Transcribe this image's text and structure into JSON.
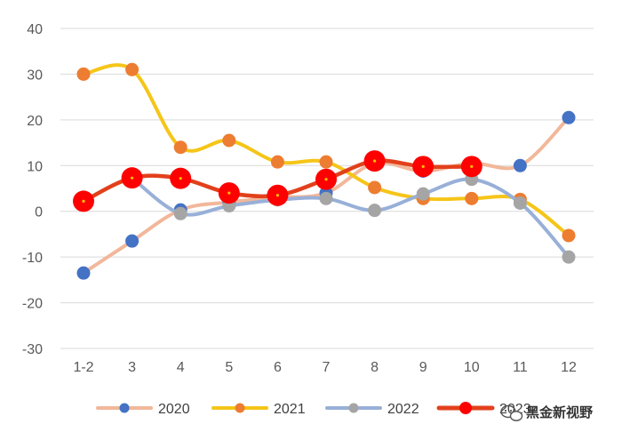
{
  "chart_data": {
    "type": "line",
    "title": "",
    "xlabel": "",
    "ylabel": "",
    "ylim": [
      -30,
      40
    ],
    "yticks": [
      -30,
      -20,
      -10,
      0,
      10,
      20,
      30,
      40
    ],
    "grid": "horizontal",
    "legend_position": "bottom",
    "categories": [
      "1-2",
      "3",
      "4",
      "5",
      "6",
      "7",
      "8",
      "9",
      "10",
      "11",
      "12"
    ],
    "series": [
      {
        "name": "2020",
        "line_color": "#F2B79A",
        "marker_color": "#4472C4",
        "values": [
          -13.5,
          -6.5,
          0.3,
          2.0,
          3.0,
          4.0,
          10.5,
          8.8,
          10.5,
          10.0,
          20.5
        ]
      },
      {
        "name": "2021",
        "line_color": "#F5C518",
        "marker_color": "#ED7D31",
        "values": [
          30.0,
          31.0,
          14.0,
          15.5,
          10.8,
          10.8,
          5.2,
          2.8,
          2.8,
          2.6,
          -5.3
        ]
      },
      {
        "name": "2022",
        "line_color": "#98B0D8",
        "marker_color": "#A5A5A5",
        "values": [
          null,
          7.3,
          -0.5,
          1.2,
          2.5,
          2.8,
          0.2,
          3.8,
          7.0,
          1.8,
          -10.0
        ]
      },
      {
        "name": "2023",
        "line_color": "#E2401C",
        "marker_color": "#FF0000",
        "values": [
          2.2,
          7.3,
          7.2,
          4.0,
          3.5,
          7.0,
          11.0,
          9.8,
          9.8,
          null,
          null
        ]
      }
    ]
  },
  "watermark": {
    "text": "黑金新视野"
  }
}
